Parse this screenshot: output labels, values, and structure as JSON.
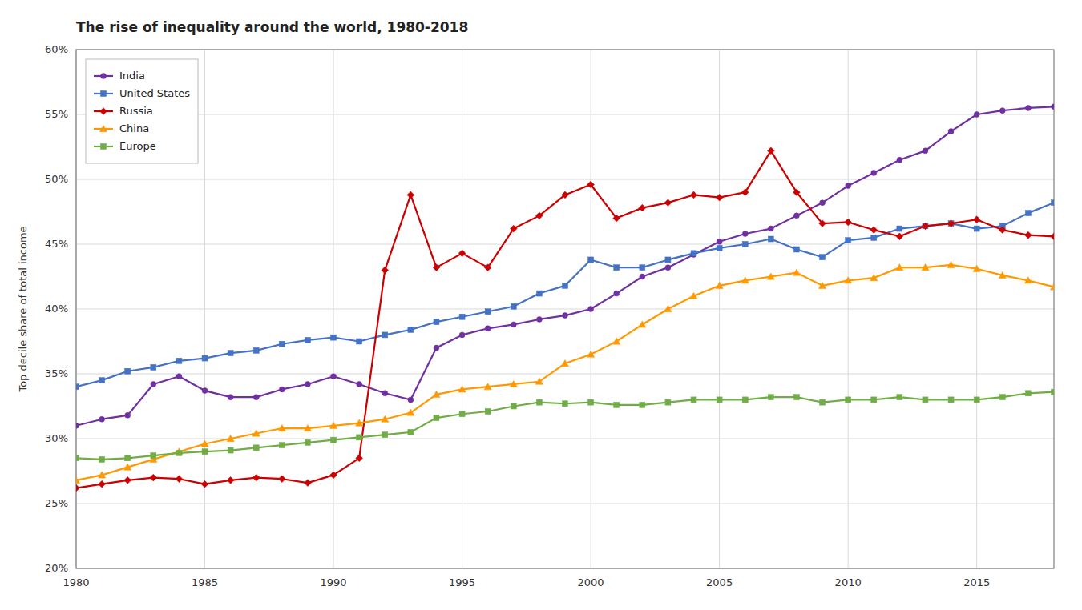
{
  "chart_data": {
    "type": "line",
    "title": "The rise of inequality around the world, 1980-2018",
    "y_label": "Top decile share of total income",
    "x": [
      1980,
      1981,
      1982,
      1983,
      1984,
      1985,
      1986,
      1987,
      1988,
      1989,
      1990,
      1991,
      1992,
      1993,
      1994,
      1995,
      1996,
      1997,
      1998,
      1999,
      2000,
      2001,
      2002,
      2003,
      2004,
      2005,
      2006,
      2007,
      2008,
      2009,
      2010,
      2011,
      2012,
      2013,
      2014,
      2015,
      2016,
      2017,
      2018
    ],
    "xlim": [
      1980,
      2018
    ],
    "xticks": [
      1980,
      1985,
      1990,
      1995,
      2000,
      2005,
      2010,
      2015
    ],
    "ylim": [
      0.2,
      0.6
    ],
    "yticks": [
      {
        "value": 0.2,
        "label": "20%"
      },
      {
        "value": 0.25,
        "label": "25%"
      },
      {
        "value": 0.3,
        "label": "30%"
      },
      {
        "value": 0.35,
        "label": "35%"
      },
      {
        "value": 0.4,
        "label": "40%"
      },
      {
        "value": 0.45,
        "label": "45%"
      },
      {
        "value": 0.5,
        "label": "50%"
      },
      {
        "value": 0.55,
        "label": "55%"
      },
      {
        "value": 0.6,
        "label": "60%"
      }
    ],
    "grid": true,
    "legend": "upper-left",
    "series": [
      {
        "name": "India",
        "color": "#7030A0",
        "marker": "circle",
        "values": [
          0.31,
          0.315,
          0.318,
          0.342,
          0.348,
          0.337,
          0.332,
          0.332,
          0.338,
          0.342,
          0.348,
          0.342,
          0.335,
          0.33,
          0.37,
          0.38,
          0.385,
          0.388,
          0.392,
          0.395,
          0.4,
          0.412,
          0.425,
          0.432,
          0.442,
          0.452,
          0.458,
          0.462,
          0.472,
          0.482,
          0.495,
          0.505,
          0.515,
          0.522,
          0.537,
          0.55,
          0.553,
          0.555,
          0.556
        ]
      },
      {
        "name": "United States",
        "color": "#4472C4",
        "marker": "square",
        "values": [
          0.34,
          0.345,
          0.352,
          0.355,
          0.36,
          0.362,
          0.366,
          0.368,
          0.373,
          0.376,
          0.378,
          0.375,
          0.38,
          0.384,
          0.39,
          0.394,
          0.398,
          0.402,
          0.412,
          0.418,
          0.438,
          0.432,
          0.432,
          0.438,
          0.443,
          0.447,
          0.45,
          0.454,
          0.446,
          0.44,
          0.453,
          0.455,
          0.462,
          0.464,
          0.466,
          0.462,
          0.464,
          0.474,
          0.482
        ]
      },
      {
        "name": "Russia",
        "color": "#CC0000",
        "marker": "diamond",
        "values": [
          0.262,
          0.265,
          0.268,
          0.27,
          0.269,
          0.265,
          0.268,
          0.27,
          0.269,
          0.266,
          0.272,
          0.285,
          0.43,
          0.488,
          0.432,
          0.443,
          0.432,
          0.462,
          0.472,
          0.488,
          0.496,
          0.47,
          0.478,
          0.482,
          0.488,
          0.486,
          0.49,
          0.522,
          0.49,
          0.466,
          0.467,
          0.461,
          0.456,
          0.464,
          0.466,
          0.469,
          0.461,
          0.457,
          0.456
        ]
      },
      {
        "name": "China",
        "color": "#FF9900",
        "marker": "triangle",
        "values": [
          0.268,
          0.272,
          0.278,
          0.284,
          0.29,
          0.296,
          0.3,
          0.304,
          0.308,
          0.308,
          0.31,
          0.312,
          0.315,
          0.32,
          0.334,
          0.338,
          0.34,
          0.342,
          0.344,
          0.358,
          0.365,
          0.375,
          0.388,
          0.4,
          0.41,
          0.418,
          0.422,
          0.425,
          0.428,
          0.418,
          0.422,
          0.424,
          0.432,
          0.432,
          0.434,
          0.431,
          0.426,
          0.422,
          0.417
        ]
      },
      {
        "name": "Europe",
        "color": "#70AD47",
        "marker": "square",
        "values": [
          0.285,
          0.284,
          0.285,
          0.287,
          0.289,
          0.29,
          0.291,
          0.293,
          0.295,
          0.297,
          0.299,
          0.301,
          0.303,
          0.305,
          0.316,
          0.319,
          0.321,
          0.325,
          0.328,
          0.327,
          0.328,
          0.326,
          0.326,
          0.328,
          0.33,
          0.33,
          0.33,
          0.332,
          0.332,
          0.328,
          0.33,
          0.33,
          0.332,
          0.33,
          0.33,
          0.33,
          0.332,
          0.335,
          0.336
        ]
      }
    ]
  }
}
